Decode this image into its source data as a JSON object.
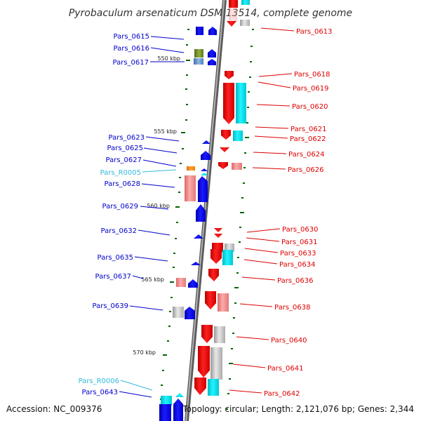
{
  "title": "Pyrobaculum arsenaticum DSM 13514, complete genome",
  "footer": {
    "accession": "Accession: NC_009376",
    "summary": "Topology: circular; Length: 2,121,076 bp; Genes: 2,344"
  },
  "colors": {
    "forward_gene": "#0000ee",
    "reverse_gene": "#ee0000",
    "label_left": "#0000cc",
    "label_right": "#dd0000",
    "rna_label": "#33bbdd",
    "tick": "#006600",
    "backbone": "#888888",
    "cyan_feature": "#00e5ee",
    "pink_feature": "#ee8888",
    "grey_feature": "#bbbbbb",
    "olive_feature": "#6b8e23",
    "steel_feature": "#5f8fc8",
    "orange_feature": "#ff8800"
  },
  "scale_labels": [
    "550 kbp",
    "555 kbp",
    "560 kbp",
    "565 kbp",
    "570 kbp"
  ],
  "genes_left": [
    {
      "label": "Pars_0615"
    },
    {
      "label": "Pars_0616"
    },
    {
      "label": "Pars_0617"
    },
    {
      "label": "Pars_0623"
    },
    {
      "label": "Pars_0625"
    },
    {
      "label": "Pars_0627"
    },
    {
      "label": "Pars_R0005",
      "rna": true
    },
    {
      "label": "Pars_0628"
    },
    {
      "label": "Pars_0629"
    },
    {
      "label": "Pars_0632"
    },
    {
      "label": "Pars_0635"
    },
    {
      "label": "Pars_0637"
    },
    {
      "label": "Pars_0639"
    },
    {
      "label": "Pars_R0006",
      "rna": true
    },
    {
      "label": "Pars_0643"
    }
  ],
  "genes_right": [
    {
      "label": "Pars_0613"
    },
    {
      "label": "Pars_0618"
    },
    {
      "label": "Pars_0619"
    },
    {
      "label": "Pars_0620"
    },
    {
      "label": "Pars_0621"
    },
    {
      "label": "Pars_0622"
    },
    {
      "label": "Pars_0624"
    },
    {
      "label": "Pars_0626"
    },
    {
      "label": "Pars_0630"
    },
    {
      "label": "Pars_0631"
    },
    {
      "label": "Pars_0633"
    },
    {
      "label": "Pars_0634"
    },
    {
      "label": "Pars_0636"
    },
    {
      "label": "Pars_0638"
    },
    {
      "label": "Pars_0640"
    },
    {
      "label": "Pars_0641"
    },
    {
      "label": "Pars_0642"
    }
  ]
}
